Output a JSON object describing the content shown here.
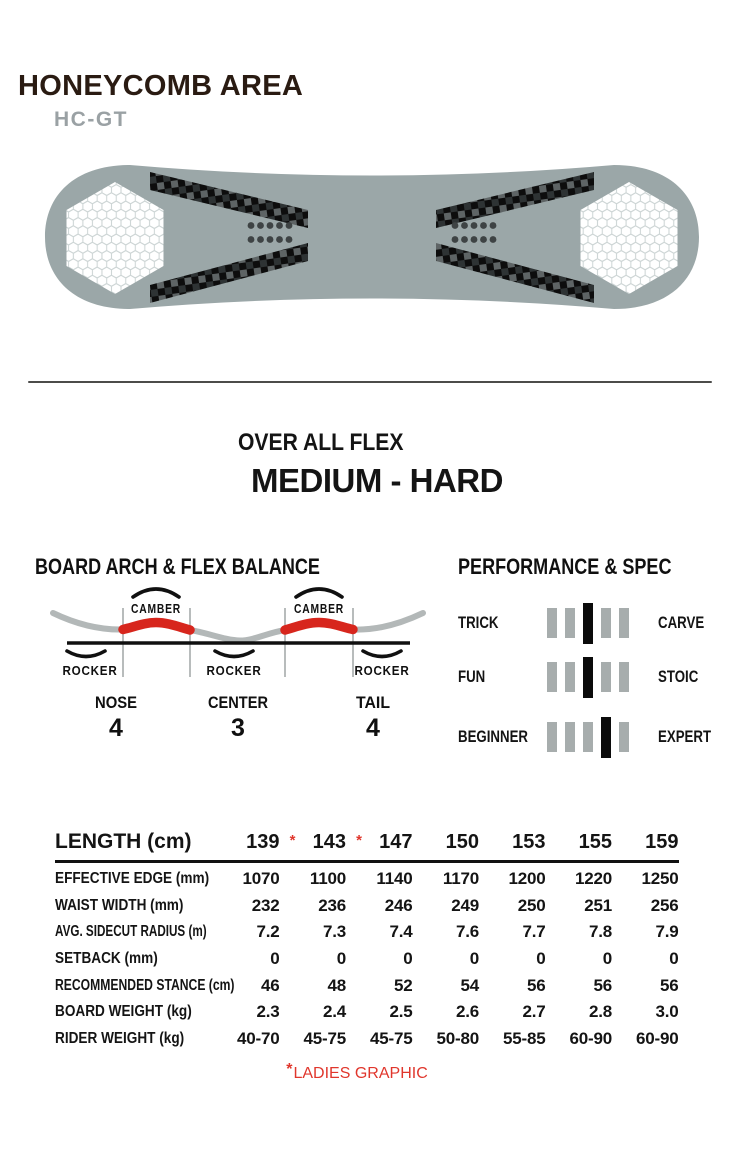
{
  "header": {
    "title": "HONEYCOMB AREA",
    "model": "HC-GT"
  },
  "board": {
    "graphic": "snowboard-top-view",
    "features": [
      "honeycomb-tip-left",
      "honeycomb-tip-right",
      "carbon-stripes",
      "binding-inserts"
    ]
  },
  "flex": {
    "label": "OVER ALL FLEX",
    "value": "MEDIUM - HARD"
  },
  "arch": {
    "title": "BOARD ARCH & FLEX BALANCE",
    "camber_label": "CAMBER",
    "rocker_label": "ROCKER",
    "sections": [
      {
        "name": "NOSE",
        "value": "4"
      },
      {
        "name": "CENTER",
        "value": "3"
      },
      {
        "name": "TAIL",
        "value": "4"
      }
    ]
  },
  "performance": {
    "title": "PERFORMANCE & SPEC",
    "scale_max": 5,
    "rows": [
      {
        "left": "TRICK",
        "right": "CARVE",
        "position": 3
      },
      {
        "left": "FUN",
        "right": "STOIC",
        "position": 3
      },
      {
        "left": "BEGINNER",
        "right": "EXPERT",
        "position": 4
      }
    ]
  },
  "spec_table": {
    "header": {
      "label": "LENGTH (cm)",
      "columns": [
        {
          "value": "139",
          "note": "*"
        },
        {
          "value": "143",
          "note": "*"
        },
        {
          "value": "147",
          "note": ""
        },
        {
          "value": "150",
          "note": ""
        },
        {
          "value": "153",
          "note": ""
        },
        {
          "value": "155",
          "note": ""
        },
        {
          "value": "159",
          "note": ""
        }
      ]
    },
    "rows": [
      {
        "label": "EFFECTIVE EDGE (mm)",
        "values": [
          "1070",
          "1100",
          "1140",
          "1170",
          "1200",
          "1220",
          "1250"
        ]
      },
      {
        "label": "WAIST WIDTH (mm)",
        "values": [
          "232",
          "236",
          "246",
          "249",
          "250",
          "251",
          "256"
        ]
      },
      {
        "label": "AVG. SIDECUT RADIUS (m)",
        "values": [
          "7.2",
          "7.3",
          "7.4",
          "7.6",
          "7.7",
          "7.8",
          "7.9"
        ]
      },
      {
        "label": "SETBACK (mm)",
        "values": [
          "0",
          "0",
          "0",
          "0",
          "0",
          "0",
          "0"
        ]
      },
      {
        "label": "RECOMMENDED STANCE (cm)",
        "values": [
          "46",
          "48",
          "52",
          "54",
          "56",
          "56",
          "56"
        ]
      },
      {
        "label": "BOARD WEIGHT (kg)",
        "values": [
          "2.3",
          "2.4",
          "2.5",
          "2.6",
          "2.7",
          "2.8",
          "3.0"
        ]
      },
      {
        "label": "RIDER WEIGHT (kg)",
        "values": [
          "40-70",
          "45-75",
          "45-75",
          "50-80",
          "55-85",
          "60-90",
          "60-90"
        ]
      }
    ],
    "footnote": {
      "asterisk": "*",
      "text": "LADIES GRAPHIC"
    }
  },
  "colors": {
    "title_ink": "#2a1b12",
    "model_gray": "#9aa1a4",
    "board_gray": "#9BA7A8",
    "camber_red": "#D7261D",
    "accent_red": "#E0362C",
    "bar_gray": "#A7ADAD",
    "bar_black": "#0b0b0b"
  }
}
